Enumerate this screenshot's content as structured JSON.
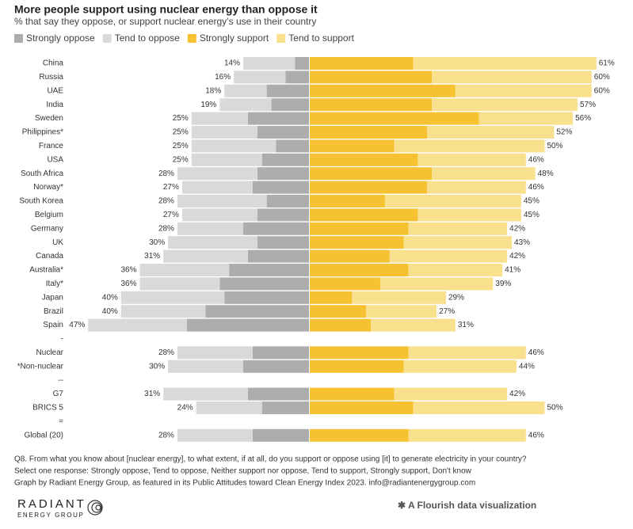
{
  "chart_data": {
    "type": "diverging-bar",
    "title": "More people support using nuclear energy than oppose it",
    "subtitle": "% that say they oppose, or support nuclear energy’s use in their country",
    "categories": [
      "China",
      "Russia",
      "UAE",
      "India",
      "Sweden",
      "Philippines*",
      "France",
      "USA",
      "South Africa",
      "Norway*",
      "South Korea",
      "Belgium",
      "Germany",
      "UK",
      "Canada",
      "Australia*",
      "Italy*",
      "Japan",
      "Brazil",
      "Spain",
      "-",
      "Nuclear",
      "*Non-nuclear",
      "--",
      "G7",
      "BRICS 5",
      "=",
      "Global (20)"
    ],
    "series": [
      {
        "name": "Strongly oppose",
        "color": "#adadad",
        "values": [
          3,
          5,
          9,
          8,
          13,
          11,
          7,
          10,
          11,
          12,
          9,
          11,
          14,
          11,
          13,
          17,
          19,
          18,
          22,
          26,
          null,
          12,
          14,
          null,
          13,
          10,
          null,
          12
        ]
      },
      {
        "name": "Tend to oppose",
        "color": "#d9d9d9",
        "values": [
          11,
          11,
          9,
          11,
          12,
          14,
          18,
          15,
          17,
          15,
          19,
          16,
          14,
          19,
          18,
          19,
          17,
          22,
          18,
          21,
          null,
          16,
          16,
          null,
          18,
          14,
          null,
          16
        ]
      },
      {
        "name": "Strongly support",
        "color": "#f6c231",
        "values": [
          22,
          26,
          31,
          26,
          36,
          25,
          18,
          23,
          26,
          25,
          16,
          23,
          21,
          20,
          17,
          21,
          15,
          9,
          12,
          13,
          null,
          21,
          20,
          null,
          18,
          22,
          null,
          21
        ]
      },
      {
        "name": "Tend to support",
        "color": "#f9e08d",
        "values": [
          39,
          34,
          29,
          31,
          20,
          27,
          32,
          23,
          22,
          21,
          29,
          22,
          21,
          23,
          25,
          20,
          24,
          20,
          15,
          18,
          null,
          25,
          24,
          null,
          24,
          28,
          null,
          25
        ]
      }
    ],
    "oppose_total": {
      "values": [
        14,
        16,
        18,
        19,
        25,
        25,
        25,
        25,
        28,
        27,
        28,
        27,
        28,
        30,
        31,
        36,
        36,
        40,
        40,
        47,
        null,
        28,
        30,
        null,
        31,
        24,
        null,
        28
      ],
      "value_labels": [
        "14%",
        "16%",
        "18%",
        "19%",
        "25%",
        "25%",
        "25%",
        "25%",
        "28%",
        "27%",
        "28%",
        "27%",
        "28%",
        "30%",
        "31%",
        "36%",
        "36%",
        "40%",
        "40%",
        "47%",
        null,
        "28%",
        "30%",
        null,
        "31%",
        "24%",
        null,
        "28%"
      ]
    },
    "support_total": {
      "values": [
        61,
        60,
        60,
        57,
        56,
        52,
        50,
        46,
        48,
        46,
        45,
        45,
        42,
        43,
        42,
        41,
        39,
        29,
        27,
        31,
        null,
        46,
        44,
        null,
        42,
        50,
        null,
        46
      ],
      "value_labels": [
        "61%",
        "60%",
        "60%",
        "57%",
        "56%",
        "52%",
        "50%",
        "46%",
        "48%",
        "46%",
        "45%",
        "45%",
        "42%",
        "43%",
        "42%",
        "41%",
        "39%",
        "29%",
        "27%",
        "31%",
        null,
        "46%",
        "44%",
        null,
        "42%",
        "50%",
        null,
        "46%"
      ]
    },
    "notes": [
      "Q8. From what you know about [nuclear energy], to what extent, if at all, do you support or oppose using [it] to generate electricity in your country?",
      "Select one response: Strongly oppose, Tend to oppose, Neither support nor oppose, Tend to support, Strongly support, Don't know",
      "Graph by Radiant Energy Group, as featured in its Public Attitudes toward Clean Energy Index 2023. info@radiantenergygroup.com"
    ],
    "logo": {
      "name": "RADIANT",
      "tagline": "ENERGY GROUP"
    },
    "credit": "A Flourish data visualization"
  }
}
